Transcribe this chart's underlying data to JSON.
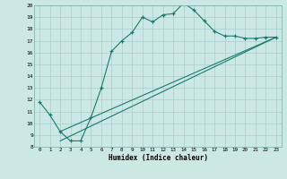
{
  "xlabel": "Humidex (Indice chaleur)",
  "bg_color": "#cce8e4",
  "line_color": "#1a7a6e",
  "grid_color": "#aacccc",
  "xmin": 0,
  "xmax": 23,
  "ymin": 8,
  "ymax": 20,
  "line1_x": [
    0,
    1,
    2,
    3,
    4,
    5,
    6,
    7,
    8,
    9,
    10,
    11,
    12,
    13,
    14,
    15,
    16,
    17,
    18,
    19,
    20,
    21,
    22,
    23
  ],
  "line1_y": [
    11.8,
    10.7,
    9.3,
    8.5,
    8.5,
    10.5,
    13.0,
    16.1,
    17.0,
    17.7,
    19.0,
    18.6,
    19.2,
    19.3,
    20.2,
    19.6,
    18.7,
    17.8,
    17.4,
    17.4,
    17.2,
    17.2,
    17.3,
    17.3
  ],
  "line2_x": [
    2,
    23
  ],
  "line2_y": [
    8.5,
    17.3
  ],
  "line3_x": [
    2,
    23
  ],
  "line3_y": [
    9.3,
    17.3
  ]
}
